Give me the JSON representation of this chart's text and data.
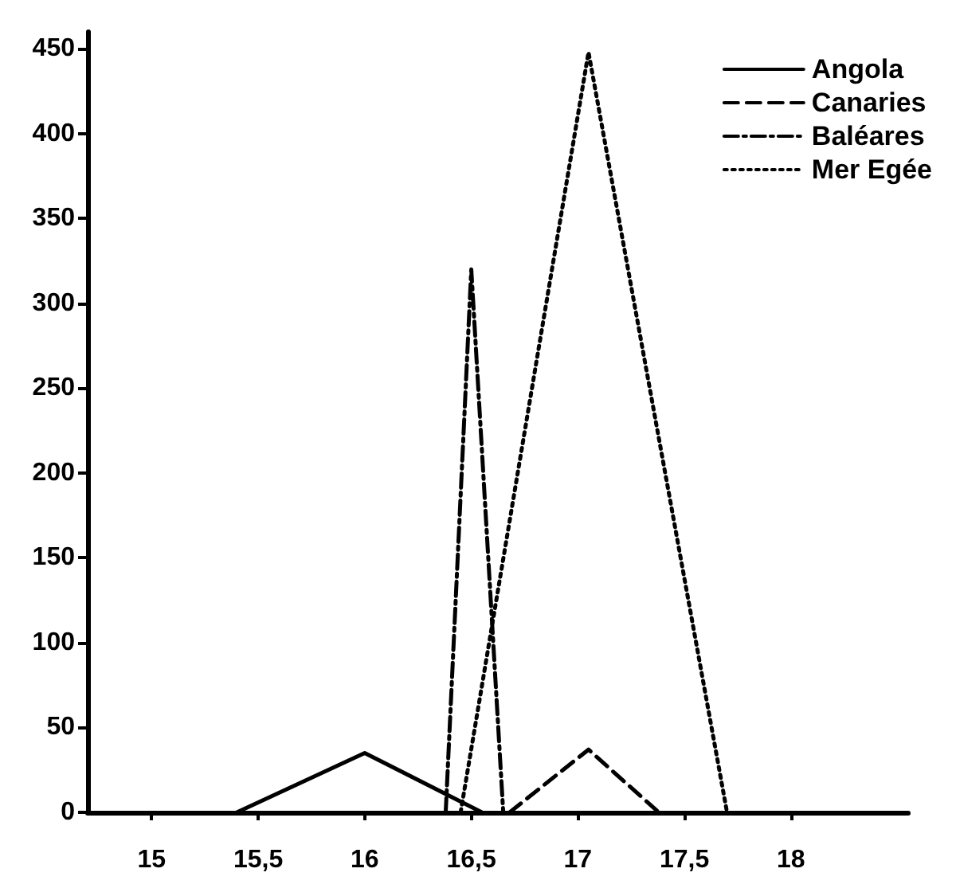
{
  "chart_data": {
    "type": "line",
    "series": [
      {
        "name": "Angola",
        "color": "#000000",
        "line_style": "solid",
        "x": [
          15.4,
          16,
          16.55
        ],
        "values": [
          0,
          35,
          0
        ]
      },
      {
        "name": "Canaries",
        "color": "#000000",
        "line_style": "dashed",
        "x": [
          16.68,
          17.05,
          17.38
        ],
        "values": [
          0,
          37,
          0
        ]
      },
      {
        "name": "Baléares",
        "color": "#000000",
        "line_style": "dashdot",
        "x": [
          16.38,
          16.5,
          16.65
        ],
        "values": [
          0,
          320,
          0
        ]
      },
      {
        "name": "Mer Egée",
        "color": "#000000",
        "line_style": "dotted",
        "x": [
          16.45,
          17.05,
          17.7
        ],
        "values": [
          0,
          448,
          0
        ]
      }
    ],
    "xlim": [
      14.7,
      18.55
    ],
    "xticks": [
      15,
      {
        "value": 15.5,
        "label": "15,5"
      },
      16,
      {
        "value": 16.5,
        "label": "16,5"
      },
      17,
      {
        "value": 17.5,
        "label": "17,5"
      },
      18
    ],
    "ylim": [
      0,
      460
    ],
    "yticks": [
      0,
      50,
      100,
      150,
      200,
      250,
      300,
      350,
      400,
      450
    ],
    "grid": false,
    "legend": "top right",
    "marker": "none"
  }
}
